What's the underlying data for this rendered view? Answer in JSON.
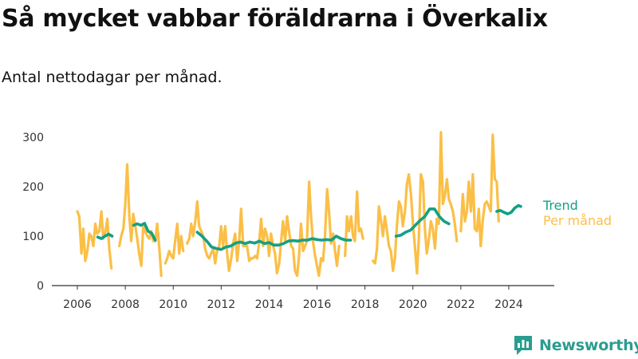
{
  "header": {
    "title": "Så mycket vabbar föräldrarna i Överkalix",
    "subtitle": "Antal nettodagar per månad."
  },
  "brand": {
    "name": "Newsworthy",
    "color": "#2a9d8f"
  },
  "chart_data": {
    "type": "line",
    "xlim": [
      2006,
      2024.6
    ],
    "ylim": [
      0,
      300
    ],
    "x_ticks": [
      "2006",
      "2008",
      "2010",
      "2012",
      "2014",
      "2016",
      "2018",
      "2020",
      "2022",
      "2024"
    ],
    "y_ticks": [
      "0",
      "100",
      "200",
      "300"
    ],
    "grid": false,
    "legend": "right",
    "series": [
      {
        "name": "Per månad",
        "color": "#fbbf47",
        "values": [
          [
            2006.0,
            150
          ],
          [
            2006.08,
            140
          ],
          [
            2006.17,
            65
          ],
          [
            2006.25,
            115
          ],
          [
            2006.33,
            50
          ],
          [
            2006.42,
            70
          ],
          [
            2006.5,
            105
          ],
          [
            2006.58,
            100
          ],
          [
            2006.67,
            80
          ],
          [
            2006.75,
            125
          ],
          [
            2006.83,
            105
          ],
          [
            2006.92,
            110
          ],
          [
            2007.0,
            150
          ],
          [
            2007.08,
            95
          ],
          [
            2007.17,
            110
          ],
          [
            2007.25,
            135
          ],
          [
            2007.33,
            75
          ],
          [
            2007.42,
            35
          ],
          null,
          [
            2007.75,
            80
          ],
          [
            2007.83,
            100
          ],
          [
            2007.92,
            115
          ],
          [
            2008.0,
            165
          ],
          [
            2008.08,
            245
          ],
          [
            2008.17,
            140
          ],
          [
            2008.25,
            90
          ],
          [
            2008.33,
            145
          ],
          [
            2008.42,
            120
          ],
          [
            2008.5,
            95
          ],
          [
            2008.58,
            65
          ],
          [
            2008.67,
            40
          ],
          [
            2008.75,
            120
          ],
          [
            2008.83,
            110
          ],
          [
            2008.92,
            100
          ],
          [
            2009.0,
            95
          ],
          [
            2009.08,
            110
          ],
          [
            2009.17,
            90
          ],
          [
            2009.25,
            90
          ],
          [
            2009.33,
            125
          ],
          [
            2009.42,
            75
          ],
          [
            2009.5,
            20
          ],
          null,
          [
            2009.67,
            45
          ],
          [
            2009.75,
            55
          ],
          [
            2009.83,
            70
          ],
          [
            2009.92,
            60
          ],
          [
            2010.0,
            55
          ],
          [
            2010.08,
            90
          ],
          [
            2010.17,
            125
          ],
          [
            2010.25,
            65
          ],
          [
            2010.33,
            100
          ],
          [
            2010.42,
            70
          ],
          null,
          [
            2010.58,
            85
          ],
          [
            2010.67,
            95
          ],
          [
            2010.75,
            125
          ],
          [
            2010.83,
            100
          ],
          [
            2010.92,
            130
          ],
          [
            2011.0,
            170
          ],
          [
            2011.08,
            120
          ],
          [
            2011.17,
            110
          ],
          [
            2011.25,
            100
          ],
          [
            2011.33,
            75
          ],
          [
            2011.42,
            60
          ],
          [
            2011.5,
            55
          ],
          [
            2011.58,
            65
          ],
          [
            2011.67,
            75
          ],
          [
            2011.75,
            45
          ],
          [
            2011.83,
            70
          ],
          [
            2011.92,
            80
          ],
          [
            2012.0,
            120
          ],
          [
            2012.08,
            80
          ],
          [
            2012.17,
            120
          ],
          [
            2012.25,
            65
          ],
          [
            2012.33,
            30
          ],
          [
            2012.42,
            55
          ],
          [
            2012.5,
            85
          ],
          [
            2012.58,
            105
          ],
          [
            2012.67,
            50
          ],
          [
            2012.75,
            90
          ],
          [
            2012.83,
            155
          ],
          [
            2012.92,
            80
          ],
          [
            2013.0,
            80
          ],
          [
            2013.08,
            80
          ],
          [
            2013.17,
            50
          ],
          [
            2013.25,
            55
          ],
          [
            2013.33,
            55
          ],
          [
            2013.42,
            60
          ],
          [
            2013.5,
            55
          ],
          [
            2013.58,
            85
          ],
          [
            2013.67,
            135
          ],
          [
            2013.75,
            80
          ],
          [
            2013.83,
            115
          ],
          [
            2013.92,
            100
          ],
          [
            2014.0,
            60
          ],
          [
            2014.08,
            105
          ],
          [
            2014.17,
            80
          ],
          [
            2014.25,
            65
          ],
          [
            2014.33,
            25
          ],
          [
            2014.42,
            45
          ],
          [
            2014.5,
            90
          ],
          [
            2014.58,
            130
          ],
          [
            2014.67,
            90
          ],
          [
            2014.75,
            140
          ],
          [
            2014.83,
            110
          ],
          [
            2014.92,
            80
          ],
          [
            2015.0,
            75
          ],
          [
            2015.08,
            30
          ],
          [
            2015.17,
            20
          ],
          [
            2015.25,
            60
          ],
          [
            2015.33,
            125
          ],
          [
            2015.42,
            70
          ],
          [
            2015.5,
            80
          ],
          [
            2015.58,
            90
          ],
          [
            2015.67,
            210
          ],
          [
            2015.75,
            140
          ],
          [
            2015.83,
            90
          ],
          [
            2015.92,
            60
          ],
          [
            2016.0,
            40
          ],
          [
            2016.08,
            20
          ],
          [
            2016.17,
            55
          ],
          [
            2016.25,
            50
          ],
          [
            2016.33,
            100
          ],
          [
            2016.42,
            195
          ],
          [
            2016.5,
            150
          ],
          [
            2016.58,
            85
          ],
          [
            2016.67,
            105
          ],
          [
            2016.75,
            70
          ],
          [
            2016.83,
            40
          ],
          [
            2016.92,
            80
          ],
          null,
          [
            2017.17,
            60
          ],
          [
            2017.25,
            140
          ],
          [
            2017.33,
            110
          ],
          [
            2017.42,
            140
          ],
          [
            2017.5,
            100
          ],
          [
            2017.58,
            90
          ],
          [
            2017.67,
            190
          ],
          [
            2017.75,
            110
          ],
          [
            2017.83,
            115
          ],
          [
            2017.92,
            95
          ],
          null,
          [
            2018.33,
            50
          ],
          [
            2018.42,
            45
          ],
          [
            2018.5,
            75
          ],
          [
            2018.58,
            160
          ],
          [
            2018.67,
            130
          ],
          [
            2018.75,
            100
          ],
          [
            2018.83,
            140
          ],
          [
            2018.92,
            110
          ],
          [
            2019.0,
            80
          ],
          [
            2019.08,
            70
          ],
          [
            2019.17,
            30
          ],
          [
            2019.25,
            55
          ],
          [
            2019.33,
            120
          ],
          [
            2019.42,
            170
          ],
          [
            2019.5,
            160
          ],
          [
            2019.58,
            120
          ],
          [
            2019.67,
            150
          ],
          [
            2019.75,
            205
          ],
          [
            2019.83,
            225
          ],
          [
            2019.92,
            185
          ],
          [
            2020.0,
            125
          ],
          [
            2020.08,
            80
          ],
          [
            2020.17,
            25
          ],
          [
            2020.25,
            100
          ],
          [
            2020.33,
            225
          ],
          [
            2020.42,
            210
          ],
          [
            2020.5,
            115
          ],
          [
            2020.58,
            65
          ],
          [
            2020.67,
            95
          ],
          [
            2020.75,
            130
          ],
          [
            2020.83,
            115
          ],
          [
            2020.92,
            75
          ],
          [
            2021.0,
            135
          ],
          [
            2021.08,
            125
          ],
          [
            2021.17,
            310
          ],
          [
            2021.25,
            165
          ],
          [
            2021.33,
            180
          ],
          [
            2021.42,
            215
          ],
          [
            2021.5,
            175
          ],
          [
            2021.58,
            165
          ],
          [
            2021.67,
            150
          ],
          [
            2021.75,
            125
          ],
          [
            2021.83,
            90
          ],
          null,
          [
            2022.0,
            110
          ],
          [
            2022.08,
            185
          ],
          [
            2022.17,
            130
          ],
          [
            2022.25,
            150
          ],
          [
            2022.33,
            210
          ],
          [
            2022.42,
            150
          ],
          [
            2022.5,
            225
          ],
          [
            2022.58,
            115
          ],
          [
            2022.67,
            110
          ],
          [
            2022.75,
            155
          ],
          [
            2022.83,
            80
          ],
          [
            2022.92,
            135
          ],
          [
            2023.0,
            165
          ],
          [
            2023.08,
            170
          ],
          [
            2023.17,
            160
          ],
          [
            2023.25,
            150
          ],
          [
            2023.33,
            305
          ],
          [
            2023.42,
            215
          ],
          [
            2023.5,
            210
          ],
          [
            2023.58,
            130
          ]
        ]
      },
      {
        "name": "Trend",
        "color": "#14a085",
        "values": [
          [
            2006.85,
            98
          ],
          [
            2007.0,
            95
          ],
          [
            2007.15,
            100
          ],
          [
            2007.3,
            104
          ],
          [
            2007.45,
            100
          ],
          null,
          [
            2008.35,
            122
          ],
          [
            2008.5,
            125
          ],
          [
            2008.65,
            122
          ],
          [
            2008.8,
            126
          ],
          [
            2008.95,
            110
          ],
          [
            2009.1,
            106
          ],
          [
            2009.25,
            92
          ],
          null,
          [
            2011.0,
            108
          ],
          [
            2011.2,
            100
          ],
          [
            2011.4,
            90
          ],
          [
            2011.6,
            78
          ],
          [
            2011.8,
            75
          ],
          [
            2012.0,
            73
          ],
          [
            2012.2,
            78
          ],
          [
            2012.4,
            80
          ],
          [
            2012.6,
            86
          ],
          [
            2012.8,
            88
          ],
          [
            2013.0,
            85
          ],
          [
            2013.2,
            88
          ],
          [
            2013.4,
            86
          ],
          [
            2013.6,
            90
          ],
          [
            2013.8,
            85
          ],
          [
            2014.0,
            87
          ],
          [
            2014.2,
            82
          ],
          [
            2014.4,
            82
          ],
          [
            2014.6,
            85
          ],
          [
            2014.8,
            90
          ],
          [
            2015.0,
            91
          ],
          [
            2015.2,
            90
          ],
          [
            2015.4,
            92
          ],
          [
            2015.6,
            92
          ],
          [
            2015.8,
            95
          ],
          [
            2016.0,
            93
          ],
          [
            2016.2,
            92
          ],
          [
            2016.4,
            93
          ],
          [
            2016.6,
            92
          ],
          [
            2016.8,
            100
          ],
          [
            2017.0,
            95
          ],
          [
            2017.2,
            92
          ],
          [
            2017.4,
            92
          ],
          null,
          [
            2019.3,
            100
          ],
          [
            2019.5,
            102
          ],
          [
            2019.7,
            108
          ],
          [
            2019.9,
            112
          ],
          [
            2020.1,
            122
          ],
          [
            2020.3,
            132
          ],
          [
            2020.5,
            140
          ],
          [
            2020.7,
            155
          ],
          [
            2020.9,
            155
          ],
          [
            2021.1,
            140
          ],
          [
            2021.3,
            130
          ],
          [
            2021.5,
            125
          ],
          null,
          [
            2023.5,
            150
          ],
          [
            2023.65,
            152
          ],
          [
            2023.8,
            148
          ],
          [
            2023.95,
            145
          ],
          [
            2024.1,
            148
          ],
          [
            2024.25,
            157
          ],
          [
            2024.4,
            162
          ],
          [
            2024.5,
            160
          ]
        ]
      }
    ]
  }
}
